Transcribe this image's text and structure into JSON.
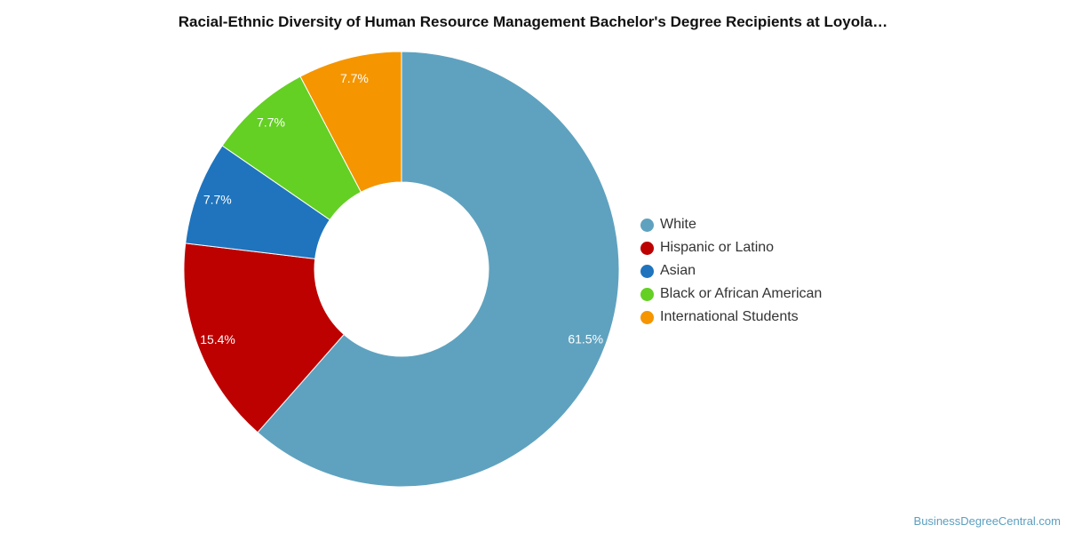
{
  "chart_data": {
    "type": "pie",
    "title": "Racial-Ethnic Diversity of Human Resource Management Bachelor's Degree Recipients at Loyola…",
    "categories": [
      "White",
      "Hispanic or Latino",
      "Asian",
      "Black or African American",
      "International Students"
    ],
    "values": [
      61.5,
      15.4,
      7.7,
      7.7,
      7.7
    ],
    "value_labels": [
      "61.5%",
      "15.4%",
      "7.7%",
      "7.7%",
      "7.7%"
    ],
    "colors": [
      "#5fa2bf",
      "#bd0000",
      "#1f74bd",
      "#63d023",
      "#f59500"
    ],
    "donut": true,
    "legend_position": "right"
  },
  "credit": "BusinessDegreeCentral.com"
}
